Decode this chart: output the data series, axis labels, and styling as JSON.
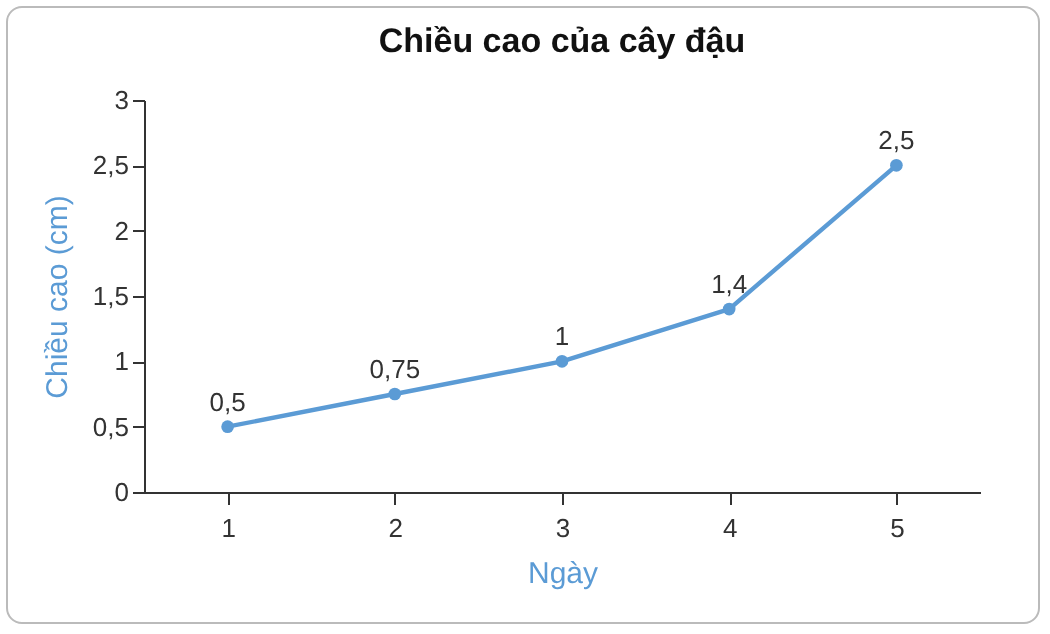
{
  "chart_data": {
    "type": "line",
    "title": "Chiều cao của cây đậu",
    "xlabel": "Ngày",
    "ylabel": "Chiều cao (cm)",
    "categories": [
      "1",
      "2",
      "3",
      "4",
      "5"
    ],
    "series": [
      {
        "color": "#5b9bd5",
        "values": [
          0.5,
          0.75,
          1,
          1.4,
          2.5
        ],
        "value_labels": [
          "0,5",
          "0,75",
          "1",
          "1,4",
          "2,5"
        ]
      }
    ],
    "ylim": [
      0,
      3
    ],
    "yticks": [
      0,
      {
        "value": 0.5,
        "label": "0,5"
      },
      1,
      {
        "value": 1.5,
        "label": "1,5"
      },
      2,
      {
        "value": 2.5,
        "label": "2,5"
      },
      3
    ],
    "marker": "circle",
    "line_style": "solid"
  }
}
